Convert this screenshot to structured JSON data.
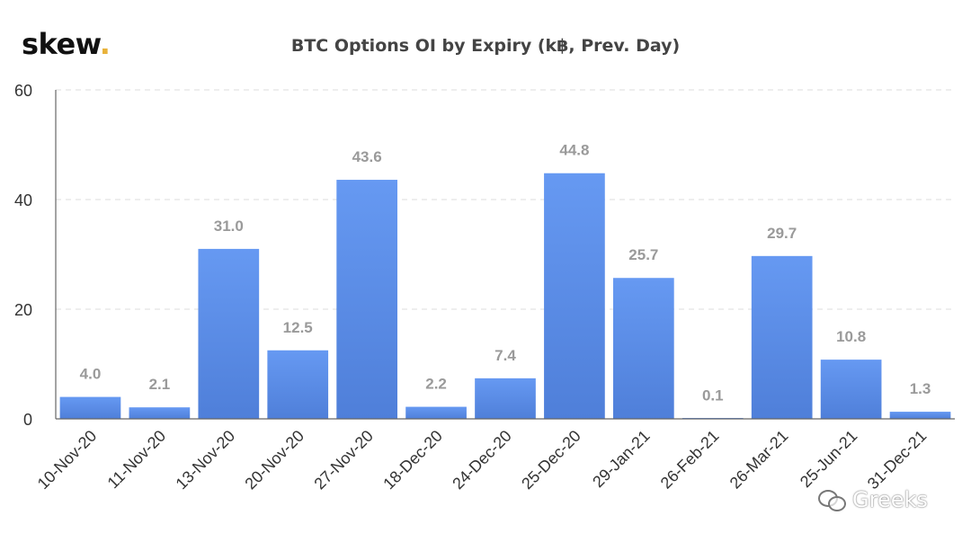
{
  "brand": {
    "name": "skew",
    "dot": "."
  },
  "watermark": {
    "text": "Greeks",
    "icon": "wechat-icon"
  },
  "colors": {
    "bar_top": "#6699f2",
    "bar_bottom": "#4f7fd9",
    "label": "#9a9a9a",
    "grid": "#dddddd",
    "axis": "#666666",
    "brand_dot": "#e8b23a"
  },
  "chart_data": {
    "type": "bar",
    "title": "BTC Options OI by Expiry (k฿, Prev. Day)",
    "xlabel": "",
    "ylabel": "",
    "ylim": [
      0,
      60
    ],
    "yticks": [
      0,
      20,
      40,
      60
    ],
    "grid": true,
    "categories": [
      "10-Nov-20",
      "11-Nov-20",
      "13-Nov-20",
      "20-Nov-20",
      "27-Nov-20",
      "18-Dec-20",
      "24-Dec-20",
      "25-Dec-20",
      "29-Jan-21",
      "26-Feb-21",
      "26-Mar-21",
      "25-Jun-21",
      "31-Dec-21"
    ],
    "values": [
      4.0,
      2.1,
      31.0,
      12.5,
      43.6,
      2.2,
      7.4,
      44.8,
      25.7,
      0.1,
      29.7,
      10.8,
      1.3
    ],
    "value_labels": [
      "4.0",
      "2.1",
      "31.0",
      "12.5",
      "43.6",
      "2.2",
      "7.4",
      "44.8",
      "25.7",
      "0.1",
      "29.7",
      "10.8",
      "1.3"
    ]
  }
}
